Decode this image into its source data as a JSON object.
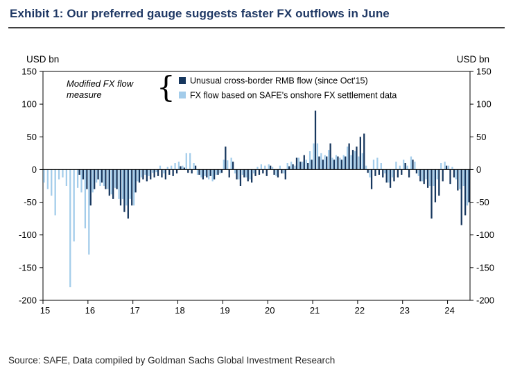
{
  "chart_data": {
    "type": "bar",
    "title": "Exhibit 1: Our preferred gauge suggests faster FX outflows in June",
    "ylabel_left": "USD bn",
    "ylabel_right": "USD bn",
    "ylim": [
      -200,
      150
    ],
    "yticks": [
      150,
      100,
      50,
      0,
      -50,
      -100,
      -150,
      -200
    ],
    "x_start": "2015-01",
    "x_months": 114,
    "x_tick_labels": [
      "15",
      "16",
      "17",
      "18",
      "19",
      "20",
      "21",
      "22",
      "23",
      "24"
    ],
    "grid": false,
    "legend_position": "top-inside",
    "annotation_lines": [
      "Modified FX flow",
      "measure"
    ],
    "series": [
      {
        "name": "Unusual cross-border RMB flow (since Oct'15)",
        "color": "#17375E",
        "values": [
          null,
          null,
          null,
          null,
          null,
          null,
          null,
          null,
          null,
          -8,
          -15,
          -30,
          -55,
          -30,
          -15,
          -20,
          -30,
          -40,
          -45,
          -30,
          -55,
          -65,
          -75,
          -55,
          -35,
          -20,
          -15,
          -18,
          -15,
          -12,
          -10,
          -12,
          -15,
          -8,
          -10,
          -6,
          5,
          3,
          -5,
          -6,
          6,
          -8,
          -15,
          -12,
          -10,
          -15,
          -8,
          -5,
          35,
          -12,
          12,
          -15,
          -25,
          -12,
          -18,
          -20,
          -10,
          -8,
          -6,
          -10,
          6,
          -8,
          -12,
          -6,
          -15,
          5,
          8,
          18,
          12,
          22,
          10,
          15,
          90,
          20,
          15,
          20,
          40,
          15,
          20,
          15,
          20,
          40,
          30,
          35,
          50,
          55,
          -5,
          -30,
          -10,
          -8,
          -12,
          -20,
          -28,
          -18,
          -12,
          -8,
          10,
          -12,
          15,
          -6,
          -18,
          -22,
          -28,
          -75,
          -50,
          -40,
          -18,
          6,
          -22,
          -12,
          -32,
          -85,
          -70,
          -50
        ]
      },
      {
        "name": "FX flow based on SAFE's onshore FX settlement data",
        "color": "#A3CCEA",
        "values": [
          -20,
          -30,
          -40,
          -70,
          -15,
          -12,
          -25,
          -180,
          -110,
          -28,
          -35,
          -90,
          -130,
          -35,
          -20,
          -25,
          -25,
          -30,
          -38,
          -28,
          -45,
          -45,
          -55,
          -45,
          -55,
          -18,
          -12,
          -8,
          -10,
          -5,
          -4,
          6,
          -6,
          4,
          6,
          10,
          12,
          6,
          25,
          25,
          10,
          -8,
          -12,
          -10,
          -15,
          -18,
          -8,
          -6,
          15,
          14,
          18,
          -6,
          -15,
          -8,
          -12,
          -15,
          -6,
          4,
          8,
          6,
          8,
          4,
          -10,
          6,
          -6,
          10,
          12,
          6,
          18,
          12,
          15,
          28,
          40,
          40,
          25,
          22,
          30,
          18,
          22,
          18,
          22,
          35,
          22,
          28,
          20,
          25,
          6,
          -12,
          15,
          18,
          10,
          -6,
          -20,
          -12,
          12,
          6,
          15,
          6,
          20,
          12,
          -10,
          -18,
          -15,
          -25,
          -25,
          -15,
          10,
          12,
          6,
          4,
          -15,
          -30,
          -25,
          -55
        ]
      }
    ],
    "source": "Source: SAFE, Data compiled by Goldman Sachs Global Investment Research"
  }
}
